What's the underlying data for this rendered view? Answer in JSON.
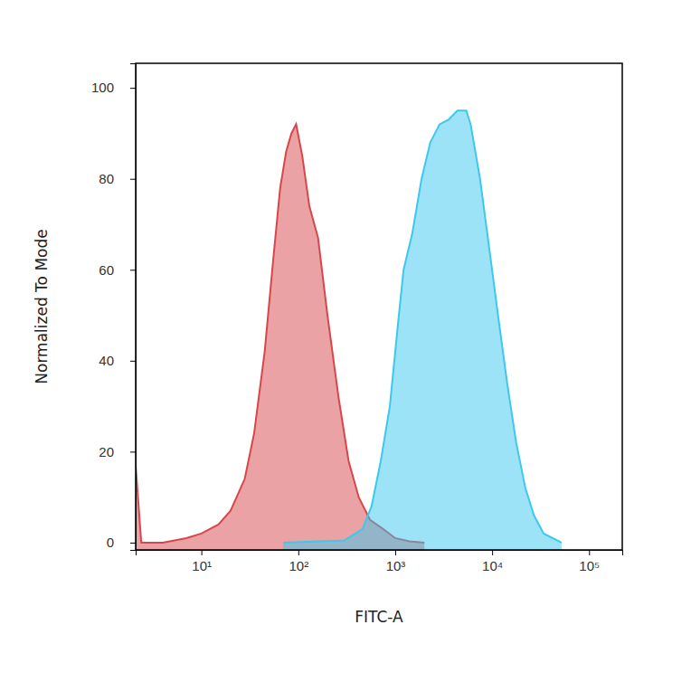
{
  "chart_data": {
    "type": "area",
    "x_label": "FITC-A",
    "y_label": "Normalized To Mode",
    "log": "x",
    "grid": false,
    "xlim": [
      2.1,
      220000
    ],
    "ylim": [
      -1.6,
      105.4
    ],
    "xticks": [
      {
        "value": 10,
        "label": "10¹"
      },
      {
        "value": 100,
        "label": "10²"
      },
      {
        "value": 1000,
        "label": "10³"
      },
      {
        "value": 10000,
        "label": "10⁴"
      },
      {
        "value": 100000,
        "label": "10⁵"
      }
    ],
    "yticks": [
      0,
      20,
      40,
      60,
      80,
      100
    ],
    "series": [
      {
        "color": "#d8464a",
        "x": [
          2.1,
          2.4,
          4,
          7,
          10,
          15,
          20,
          28,
          35,
          45,
          55,
          65,
          75,
          85,
          95,
          110,
          130,
          160,
          200,
          260,
          330,
          420,
          550,
          750,
          1000,
          1400,
          2000
        ],
        "values": [
          17,
          0,
          0,
          1,
          2,
          4,
          7,
          14,
          24,
          42,
          62,
          78,
          86,
          90,
          92,
          85,
          74,
          67,
          50,
          32,
          18,
          10,
          5,
          3,
          1,
          0.3,
          0
        ]
      },
      {
        "color": "#3cc8ef",
        "x": [
          70,
          300,
          460,
          570,
          710,
          880,
          1090,
          1220,
          1500,
          1870,
          2300,
          2870,
          3540,
          4380,
          5400,
          6000,
          7500,
          9300,
          11500,
          14300,
          17700,
          22000,
          27000,
          34000,
          52000
        ],
        "values": [
          0,
          0.5,
          3,
          8,
          18,
          30,
          50,
          60,
          68,
          80,
          88,
          92,
          93,
          95,
          95,
          92,
          80,
          65,
          50,
          35,
          22,
          12,
          6,
          2,
          0
        ]
      }
    ]
  }
}
